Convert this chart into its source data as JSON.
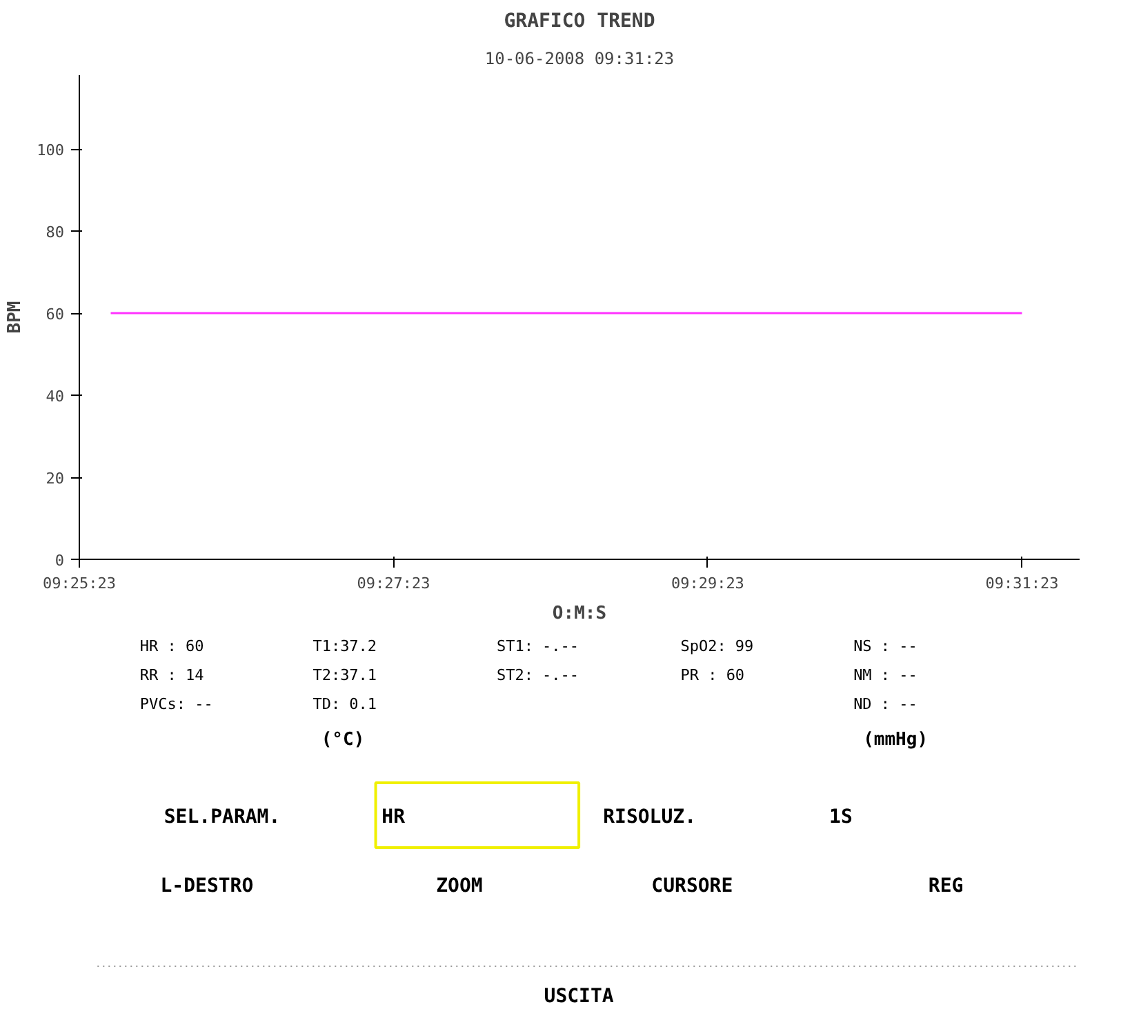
{
  "chart_data": {
    "type": "line",
    "title": "GRAFICO TREND",
    "subtitle": "10-06-2008 09:31:23",
    "xlabel": "O:M:S",
    "ylabel": "BPM",
    "xlim": [
      9.42306,
      9.52917
    ],
    "xticks": [
      {
        "value": 9.42306,
        "label": "09:25:23"
      },
      {
        "value": 9.45639,
        "label": "09:27:23"
      },
      {
        "value": 9.48972,
        "label": "09:29:23"
      },
      {
        "value": 9.52306,
        "label": "09:31:23"
      }
    ],
    "ylim": [
      0,
      118
    ],
    "yticks": [
      0,
      20,
      40,
      60,
      80,
      100
    ],
    "series": [
      {
        "color": "#ff33ff",
        "x": [
          9.42639,
          9.52306
        ],
        "values": [
          60,
          60
        ]
      }
    ],
    "annotations": [
      "HR  : 60",
      "RR  : 14",
      "PVCs: --",
      "T1:37.2",
      "T2:37.1",
      "TD: 0.1",
      "(°C)",
      "ST1: -.--",
      "ST2: -.--",
      "SpO2: 99",
      "PR  : 60",
      "NS : --",
      "NM : --",
      "ND : --",
      "(mmHg)",
      "SEL.PARAM.",
      "HR",
      "RISOLUZ.",
      "1S",
      "L-DESTRO",
      "ZOOM",
      "CURSORE",
      "REG",
      "USCITA"
    ]
  }
}
